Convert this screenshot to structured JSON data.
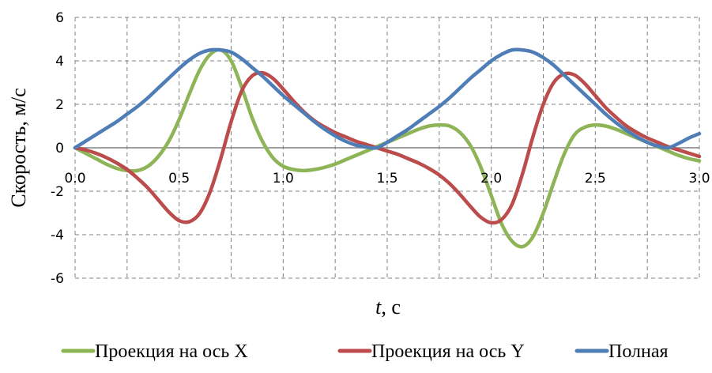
{
  "chart_data": {
    "type": "line",
    "xlabel_italic": "t",
    "xlabel_unit": ", с",
    "ylabel": "Скорость, м/с",
    "xlim": [
      0,
      3
    ],
    "ylim": [
      -6,
      6
    ],
    "x_ticks": [
      "0.0",
      "0.5",
      "1.0",
      "1.5",
      "2.0",
      "2.5",
      "3.0"
    ],
    "y_ticks": [
      "6",
      "4",
      "2",
      "0",
      "-2",
      "-4",
      "-6"
    ],
    "grid": true,
    "legend_position": "bottom",
    "x": [
      0,
      0.05,
      0.1,
      0.15,
      0.2,
      0.25,
      0.3,
      0.35,
      0.4,
      0.45,
      0.5,
      0.55,
      0.6,
      0.65,
      0.7,
      0.75,
      0.8,
      0.85,
      0.9,
      0.95,
      1.0,
      1.05,
      1.1,
      1.15,
      1.2,
      1.25,
      1.3,
      1.35,
      1.4,
      1.45,
      1.5,
      1.55,
      1.6,
      1.65,
      1.7,
      1.75,
      1.8,
      1.85,
      1.9,
      1.95,
      2.0,
      2.05,
      2.1,
      2.15,
      2.2,
      2.25,
      2.3,
      2.35,
      2.4,
      2.45,
      2.5,
      2.55,
      2.6,
      2.65,
      2.7,
      2.75,
      2.8,
      2.85,
      2.9,
      2.95,
      3.0
    ],
    "series": [
      {
        "name": "Проекция на ось X",
        "color": "#8DB456",
        "values": [
          0,
          -0.25,
          -0.5,
          -0.75,
          -0.95,
          -1.05,
          -1.05,
          -0.85,
          -0.4,
          0.3,
          1.3,
          2.5,
          3.6,
          4.3,
          4.5,
          4.0,
          2.8,
          1.4,
          0.3,
          -0.45,
          -0.85,
          -1.0,
          -1.05,
          -1.0,
          -0.9,
          -0.75,
          -0.55,
          -0.35,
          -0.15,
          0.05,
          0.25,
          0.45,
          0.65,
          0.85,
          1.0,
          1.05,
          1.0,
          0.7,
          0.1,
          -0.9,
          -2.2,
          -3.5,
          -4.3,
          -4.55,
          -4.1,
          -3.0,
          -1.6,
          -0.3,
          0.6,
          0.95,
          1.05,
          1.0,
          0.85,
          0.65,
          0.45,
          0.25,
          0.05,
          -0.15,
          -0.35,
          -0.5,
          -0.6
        ]
      },
      {
        "name": "Проекция на ось Y",
        "color": "#BC4B4B",
        "values": [
          0,
          -0.1,
          -0.25,
          -0.45,
          -0.7,
          -1.0,
          -1.4,
          -1.85,
          -2.4,
          -2.95,
          -3.35,
          -3.4,
          -3.0,
          -2.0,
          -0.5,
          1.2,
          2.6,
          3.3,
          3.45,
          3.2,
          2.7,
          2.15,
          1.65,
          1.25,
          0.95,
          0.7,
          0.5,
          0.3,
          0.15,
          0.0,
          -0.15,
          -0.3,
          -0.5,
          -0.7,
          -0.95,
          -1.25,
          -1.65,
          -2.15,
          -2.7,
          -3.2,
          -3.45,
          -3.3,
          -2.6,
          -1.2,
          0.5,
          2.0,
          3.0,
          3.4,
          3.35,
          2.95,
          2.4,
          1.85,
          1.4,
          1.0,
          0.7,
          0.45,
          0.25,
          0.05,
          -0.1,
          -0.25,
          -0.4
        ]
      },
      {
        "name": "Полная",
        "color": "#4F7EB7",
        "values": [
          0,
          0.3,
          0.6,
          0.9,
          1.2,
          1.55,
          1.9,
          2.3,
          2.75,
          3.2,
          3.65,
          4.05,
          4.35,
          4.5,
          4.5,
          4.4,
          4.1,
          3.7,
          3.3,
          2.85,
          2.4,
          2.0,
          1.6,
          1.2,
          0.85,
          0.55,
          0.3,
          0.12,
          0.03,
          0.0,
          0.25,
          0.55,
          0.85,
          1.2,
          1.55,
          1.9,
          2.3,
          2.75,
          3.2,
          3.6,
          4.0,
          4.3,
          4.5,
          4.5,
          4.4,
          4.15,
          3.8,
          3.35,
          2.9,
          2.45,
          2.0,
          1.55,
          1.15,
          0.8,
          0.5,
          0.25,
          0.08,
          0.0,
          0.2,
          0.45,
          0.65
        ]
      }
    ]
  }
}
